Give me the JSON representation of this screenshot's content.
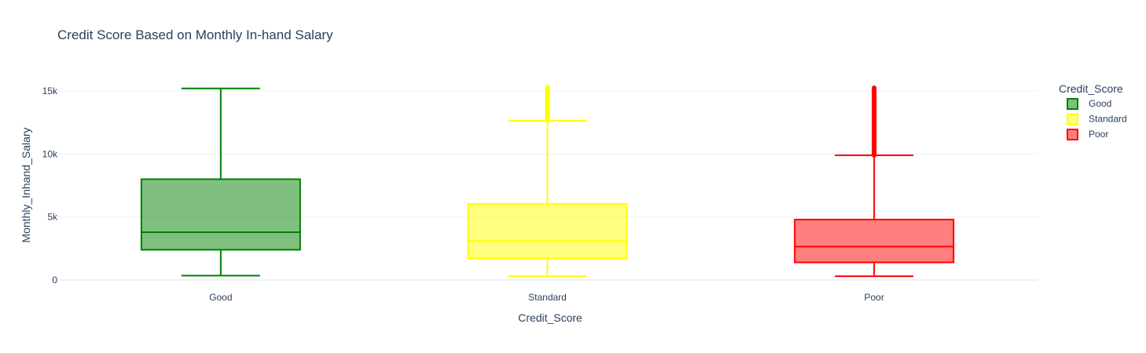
{
  "chart_data": {
    "type": "box",
    "title": "Credit Score Based on Monthly In-hand Salary",
    "xlabel": "Credit_Score",
    "ylabel": "Monthly_Inhand_Salary",
    "categories": [
      "Good",
      "Standard",
      "Poor"
    ],
    "ylim": [
      -250,
      16000
    ],
    "yticks": [
      {
        "value": 0,
        "label": "0"
      },
      {
        "value": 5000,
        "label": "5k"
      },
      {
        "value": 10000,
        "label": "10k"
      },
      {
        "value": 15000,
        "label": "15k"
      }
    ],
    "grid": true,
    "legend": {
      "title": "Credit_Score",
      "placement": "top-right"
    },
    "series": [
      {
        "name": "Good",
        "color": "#008000",
        "fill": "rgba(0,128,0,0.5)",
        "whisker_low": 350,
        "q1": 2400,
        "median": 3800,
        "q3": 8000,
        "whisker_high": 15200,
        "outliers_range": null
      },
      {
        "name": "Standard",
        "color": "#ffff00",
        "fill": "rgba(255,255,0,0.5)",
        "whisker_low": 300,
        "q1": 1700,
        "median": 3100,
        "q3": 6050,
        "whisker_high": 12650,
        "outliers_range": [
          12650,
          15300
        ]
      },
      {
        "name": "Poor",
        "color": "#ff0000",
        "fill": "rgba(255,0,0,0.5)",
        "whisker_low": 300,
        "q1": 1400,
        "median": 2650,
        "q3": 4800,
        "whisker_high": 9900,
        "outliers_range": [
          9900,
          15250
        ]
      }
    ]
  }
}
